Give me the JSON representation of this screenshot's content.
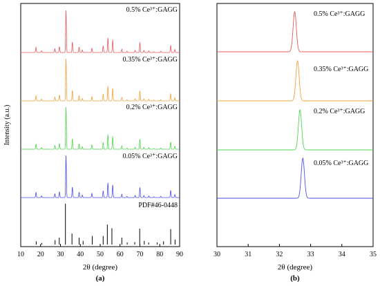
{
  "colors": {
    "red": "#e8595a",
    "orange": "#f2a23a",
    "green": "#4fd44f",
    "blue": "#4a4ff0",
    "black": "#000000"
  },
  "chart_data": [
    {
      "panel_label": "(a)",
      "type": "line",
      "xlabel": "2θ (degree)",
      "ylabel": "Intensity (a.u.)",
      "xlim": [
        10,
        90
      ],
      "xticks": [
        10,
        20,
        30,
        40,
        50,
        60,
        70,
        80,
        90
      ],
      "series": [
        {
          "name": "0.5% Ce³⁺:GAGG",
          "color": "red"
        },
        {
          "name": "0.35% Ce³⁺:GAGG",
          "color": "orange"
        },
        {
          "name": "0.2% Ce³⁺:GAGG",
          "color": "green"
        },
        {
          "name": "0.05% Ce³⁺:GAGG",
          "color": "blue"
        }
      ],
      "peaks": [
        {
          "x": 17.7,
          "h": 0.12
        },
        {
          "x": 20.5,
          "h": 0.04
        },
        {
          "x": 27.2,
          "h": 0.09
        },
        {
          "x": 29.5,
          "h": 0.14
        },
        {
          "x": 32.8,
          "h": 1.0
        },
        {
          "x": 36.0,
          "h": 0.25
        },
        {
          "x": 39.4,
          "h": 0.13
        },
        {
          "x": 41.0,
          "h": 0.06
        },
        {
          "x": 45.8,
          "h": 0.1
        },
        {
          "x": 51.5,
          "h": 0.16
        },
        {
          "x": 53.9,
          "h": 0.35
        },
        {
          "x": 56.3,
          "h": 0.3
        },
        {
          "x": 60.9,
          "h": 0.08
        },
        {
          "x": 63.5,
          "h": 0.03
        },
        {
          "x": 67.6,
          "h": 0.05
        },
        {
          "x": 70.0,
          "h": 0.24
        },
        {
          "x": 72.0,
          "h": 0.05
        },
        {
          "x": 74.5,
          "h": 0.04
        },
        {
          "x": 77.0,
          "h": 0.02
        },
        {
          "x": 80.5,
          "h": 0.03
        },
        {
          "x": 85.5,
          "h": 0.17
        },
        {
          "x": 87.6,
          "h": 0.07
        }
      ],
      "reference": {
        "name": "PDF#46-0448",
        "sticks": [
          {
            "x": 17.8,
            "h": 0.08
          },
          {
            "x": 20.6,
            "h": 0.04
          },
          {
            "x": 27.3,
            "h": 0.11
          },
          {
            "x": 29.4,
            "h": 0.17
          },
          {
            "x": 32.5,
            "h": 1.0
          },
          {
            "x": 35.8,
            "h": 0.27
          },
          {
            "x": 39.4,
            "h": 0.17
          },
          {
            "x": 41.4,
            "h": 0.09
          },
          {
            "x": 46.0,
            "h": 0.21
          },
          {
            "x": 51.5,
            "h": 0.21
          },
          {
            "x": 53.6,
            "h": 0.49
          },
          {
            "x": 55.9,
            "h": 0.4
          },
          {
            "x": 60.9,
            "h": 0.17
          },
          {
            "x": 63.6,
            "h": 0.05
          },
          {
            "x": 67.4,
            "h": 0.06
          },
          {
            "x": 69.9,
            "h": 0.39
          },
          {
            "x": 72.2,
            "h": 0.09
          },
          {
            "x": 74.4,
            "h": 0.05
          },
          {
            "x": 78.7,
            "h": 0.05
          },
          {
            "x": 81.9,
            "h": 0.08
          },
          {
            "x": 85.5,
            "h": 0.38
          },
          {
            "x": 87.7,
            "h": 0.12
          }
        ]
      }
    },
    {
      "panel_label": "(b)",
      "type": "line",
      "xlabel": "2θ (degree)",
      "xlim": [
        30,
        35
      ],
      "xticks": [
        30,
        31,
        32,
        33,
        34,
        35
      ],
      "series": [
        {
          "name": "0.5% Ce³⁺:GAGG",
          "color": "red",
          "peak_x": 32.49
        },
        {
          "name": "0.35% Ce³⁺:GAGG",
          "color": "orange",
          "peak_x": 32.58
        },
        {
          "name": "0.2% Ce³⁺:GAGG",
          "color": "green",
          "peak_x": 32.66
        },
        {
          "name": "0.05% Ce³⁺:GAGG",
          "color": "blue",
          "peak_x": 32.75
        }
      ]
    }
  ]
}
